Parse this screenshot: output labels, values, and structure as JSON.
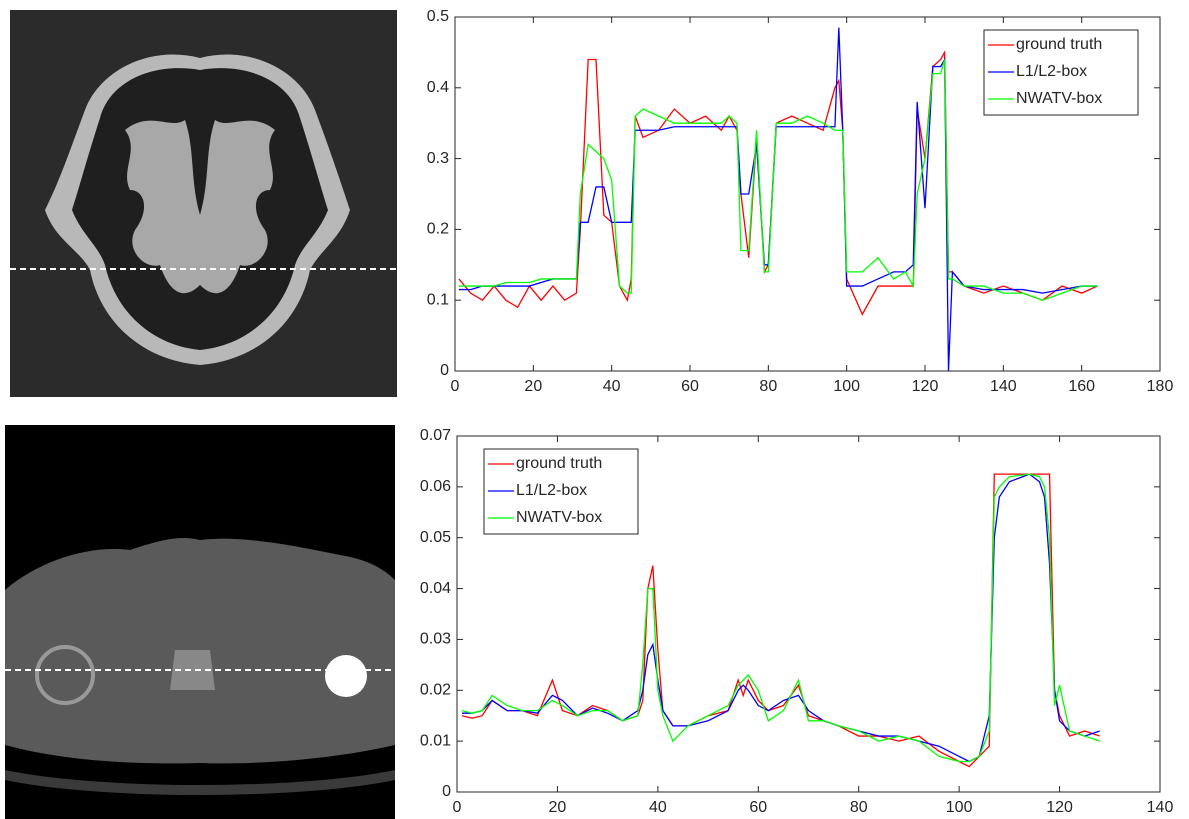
{
  "chart_data": [
    {
      "type": "line",
      "legend": "upper right",
      "x": [
        1,
        4,
        7,
        10,
        13,
        16,
        19,
        22,
        25,
        28,
        31,
        32,
        34,
        36,
        38,
        40,
        42,
        44,
        45,
        46,
        48,
        52,
        56,
        60,
        64,
        68,
        70,
        72,
        73,
        75,
        77,
        79,
        80,
        82,
        86,
        90,
        94,
        97,
        98,
        99,
        100,
        104,
        108,
        112,
        115,
        117,
        118,
        120,
        122,
        124,
        125,
        126,
        127,
        130,
        135,
        140,
        145,
        150,
        155,
        160,
        164
      ],
      "series": [
        {
          "name": "ground truth",
          "color": "#ff0000",
          "values": [
            0.13,
            0.11,
            0.1,
            0.12,
            0.1,
            0.09,
            0.12,
            0.1,
            0.12,
            0.1,
            0.11,
            0.2,
            0.44,
            0.44,
            0.22,
            0.21,
            0.12,
            0.1,
            0.13,
            0.36,
            0.33,
            0.34,
            0.37,
            0.35,
            0.36,
            0.34,
            0.36,
            0.34,
            0.25,
            0.16,
            0.33,
            0.14,
            0.15,
            0.35,
            0.36,
            0.35,
            0.34,
            0.4,
            0.41,
            0.34,
            0.13,
            0.08,
            0.12,
            0.12,
            0.12,
            0.12,
            0.37,
            0.3,
            0.43,
            0.44,
            0.45,
            0.14,
            0.14,
            0.12,
            0.11,
            0.12,
            0.11,
            0.1,
            0.12,
            0.11,
            0.12
          ]
        },
        {
          "name": "L1/L2-box",
          "color": "#0000ff",
          "values": [
            0.115,
            0.115,
            0.12,
            0.12,
            0.12,
            0.12,
            0.12,
            0.125,
            0.13,
            0.13,
            0.13,
            0.21,
            0.21,
            0.26,
            0.26,
            0.21,
            0.21,
            0.21,
            0.21,
            0.34,
            0.34,
            0.34,
            0.345,
            0.345,
            0.345,
            0.345,
            0.345,
            0.345,
            0.25,
            0.25,
            0.32,
            0.15,
            0.15,
            0.345,
            0.345,
            0.345,
            0.345,
            0.345,
            0.485,
            0.34,
            0.12,
            0.12,
            0.13,
            0.14,
            0.14,
            0.15,
            0.38,
            0.23,
            0.43,
            0.43,
            0.44,
            0,
            0.14,
            0.12,
            0.115,
            0.115,
            0.115,
            0.11,
            0.115,
            0.12,
            0.12
          ]
        },
        {
          "name": "NWATV-box",
          "color": "#00ff00",
          "values": [
            0.12,
            0.12,
            0.12,
            0.12,
            0.125,
            0.125,
            0.125,
            0.13,
            0.13,
            0.13,
            0.13,
            0.25,
            0.32,
            0.31,
            0.3,
            0.27,
            0.12,
            0.11,
            0.11,
            0.36,
            0.37,
            0.36,
            0.35,
            0.35,
            0.35,
            0.35,
            0.36,
            0.35,
            0.17,
            0.17,
            0.34,
            0.14,
            0.14,
            0.35,
            0.35,
            0.36,
            0.35,
            0.34,
            0.34,
            0.34,
            0.14,
            0.14,
            0.16,
            0.13,
            0.14,
            0.12,
            0.25,
            0.3,
            0.42,
            0.42,
            0.44,
            0.13,
            0.13,
            0.12,
            0.12,
            0.11,
            0.11,
            0.1,
            0.11,
            0.12,
            0.12
          ]
        }
      ],
      "xlim": [
        0,
        180
      ],
      "xticks": [
        0,
        20,
        40,
        60,
        80,
        100,
        120,
        140,
        160,
        180
      ],
      "ylim": [
        0,
        0.5
      ],
      "yticks": [
        0,
        0.1,
        0.2,
        0.3,
        0.4,
        0.5
      ]
    },
    {
      "type": "line",
      "legend": "upper left",
      "x": [
        1,
        3,
        5,
        7,
        10,
        13,
        16,
        19,
        21,
        24,
        27,
        30,
        33,
        36,
        37,
        38,
        39,
        40,
        41,
        43,
        46,
        50,
        54,
        56,
        57,
        58,
        60,
        62,
        65,
        68,
        70,
        73,
        76,
        80,
        84,
        88,
        92,
        96,
        100,
        102,
        104,
        106,
        107,
        108,
        110,
        114,
        116,
        117,
        118,
        119,
        120,
        122,
        125,
        128
      ],
      "series": [
        {
          "name": "ground truth",
          "color": "#ff0000",
          "values": [
            0.015,
            0.0145,
            0.015,
            0.018,
            0.016,
            0.016,
            0.015,
            0.022,
            0.016,
            0.015,
            0.017,
            0.016,
            0.014,
            0.015,
            0.018,
            0.04,
            0.0445,
            0.028,
            0.016,
            0.013,
            0.013,
            0.015,
            0.016,
            0.022,
            0.019,
            0.022,
            0.018,
            0.016,
            0.017,
            0.021,
            0.015,
            0.014,
            0.013,
            0.011,
            0.011,
            0.01,
            0.011,
            0.008,
            0.006,
            0.005,
            0.007,
            0.009,
            0.0625,
            0.0625,
            0.0625,
            0.0625,
            0.0625,
            0.0625,
            0.0625,
            0.02,
            0.015,
            0.011,
            0.012,
            0.011
          ]
        },
        {
          "name": "L1/L2-box",
          "color": "#0000ff",
          "values": [
            0.0155,
            0.0155,
            0.016,
            0.018,
            0.016,
            0.016,
            0.0155,
            0.019,
            0.018,
            0.015,
            0.0165,
            0.0155,
            0.014,
            0.016,
            0.02,
            0.027,
            0.029,
            0.022,
            0.016,
            0.013,
            0.013,
            0.014,
            0.016,
            0.02,
            0.021,
            0.02,
            0.017,
            0.016,
            0.018,
            0.019,
            0.016,
            0.014,
            0.013,
            0.012,
            0.011,
            0.011,
            0.01,
            0.009,
            0.007,
            0.006,
            0.007,
            0.015,
            0.05,
            0.058,
            0.061,
            0.0625,
            0.061,
            0.058,
            0.045,
            0.02,
            0.014,
            0.012,
            0.011,
            0.012
          ]
        },
        {
          "name": "NWATV-box",
          "color": "#00ff00",
          "values": [
            0.016,
            0.0155,
            0.016,
            0.019,
            0.017,
            0.016,
            0.016,
            0.018,
            0.017,
            0.015,
            0.016,
            0.016,
            0.014,
            0.015,
            0.025,
            0.04,
            0.04,
            0.02,
            0.015,
            0.01,
            0.013,
            0.015,
            0.017,
            0.021,
            0.022,
            0.023,
            0.02,
            0.014,
            0.016,
            0.022,
            0.014,
            0.014,
            0.013,
            0.012,
            0.01,
            0.011,
            0.01,
            0.007,
            0.006,
            0.006,
            0.007,
            0.012,
            0.058,
            0.06,
            0.062,
            0.0625,
            0.062,
            0.06,
            0.05,
            0.017,
            0.021,
            0.012,
            0.011,
            0.01
          ]
        }
      ],
      "xlim": [
        0,
        140
      ],
      "xticks": [
        0,
        20,
        40,
        60,
        80,
        100,
        120,
        140
      ],
      "ylim": [
        0,
        0.07
      ],
      "yticks": [
        0,
        0.01,
        0.02,
        0.03,
        0.04,
        0.05,
        0.06,
        0.07
      ]
    }
  ]
}
